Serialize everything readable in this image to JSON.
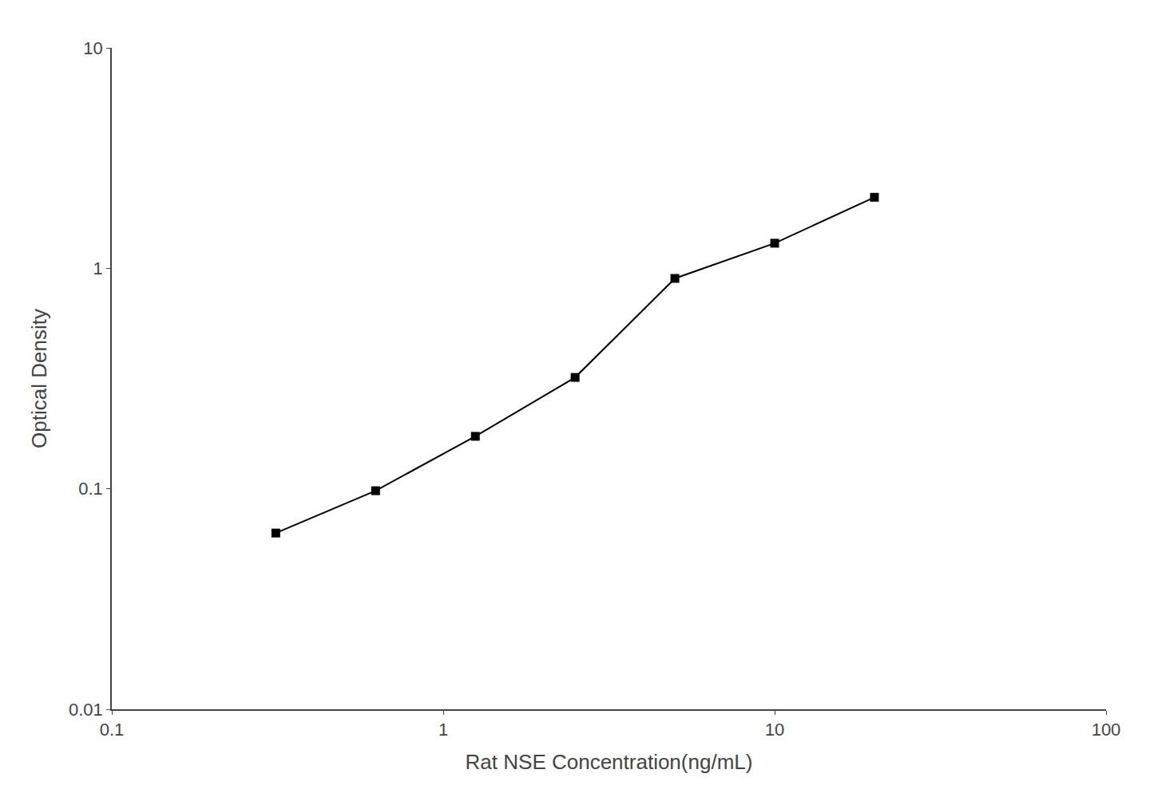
{
  "chart_data": {
    "type": "line",
    "xlabel": "Rat NSE Concentration(ng/mL)",
    "ylabel": "Optical Density",
    "x": [
      0.3125,
      0.625,
      1.25,
      2.5,
      5.0,
      10.0,
      20.0
    ],
    "values": [
      0.063,
      0.098,
      0.173,
      0.32,
      0.9,
      1.3,
      2.1
    ],
    "color": "#000000",
    "marker": "square",
    "line_style": "solid",
    "log": true,
    "xlim": [
      0.1,
      100
    ],
    "ylim": [
      0.01,
      10
    ],
    "xticks": [
      0.1,
      1,
      10,
      100
    ],
    "yticks": [
      0.01,
      0.1,
      1,
      10
    ],
    "grid": false
  }
}
